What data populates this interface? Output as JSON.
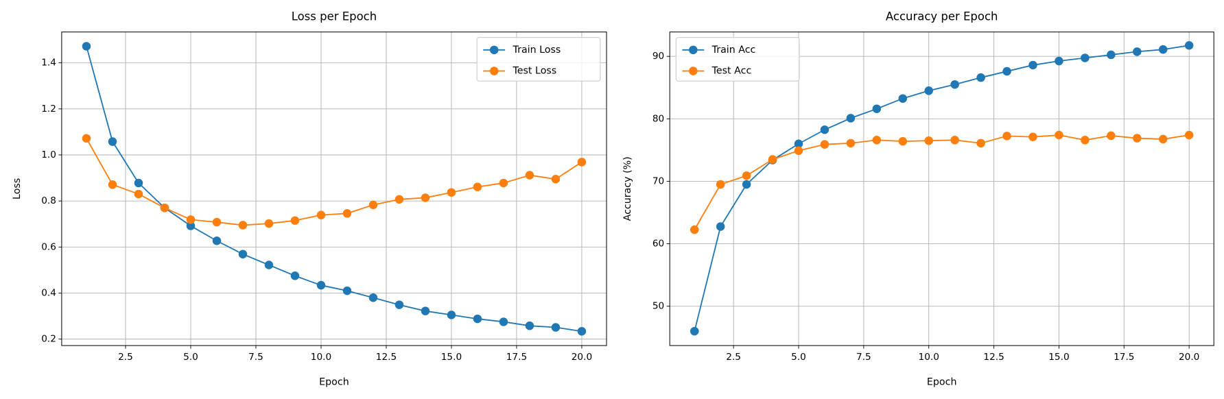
{
  "chart_data": [
    {
      "type": "line",
      "title": "Loss per Epoch",
      "xlabel": "Epoch",
      "ylabel": "Loss",
      "x": [
        1,
        2,
        3,
        4,
        5,
        6,
        7,
        8,
        9,
        10,
        11,
        12,
        13,
        14,
        15,
        16,
        17,
        18,
        19,
        20
      ],
      "series": [
        {
          "name": "Train Loss",
          "color": "#1f77b4",
          "values": [
            1.472,
            1.058,
            0.878,
            0.77,
            0.692,
            0.627,
            0.569,
            0.522,
            0.475,
            0.434,
            0.41,
            0.38,
            0.349,
            0.322,
            0.305,
            0.288,
            0.275,
            0.258,
            0.251,
            0.234
          ]
        },
        {
          "name": "Test Loss",
          "color": "#ff7f0e",
          "values": [
            1.072,
            0.871,
            0.83,
            0.77,
            0.719,
            0.708,
            0.695,
            0.702,
            0.715,
            0.739,
            0.746,
            0.783,
            0.807,
            0.814,
            0.837,
            0.861,
            0.878,
            0.912,
            0.895,
            0.969
          ]
        }
      ],
      "xlim": [
        0.05,
        20.95
      ],
      "ylim": [
        0.172,
        1.534
      ],
      "xticks": [
        2.5,
        {
          "value": 5,
          "label": "5.0"
        },
        7.5,
        {
          "value": 10,
          "label": "10.0"
        },
        12.5,
        {
          "value": 15,
          "label": "15.0"
        },
        17.5,
        {
          "value": 20,
          "label": "20.0"
        }
      ],
      "yticks": [
        0.2,
        0.4,
        0.6,
        0.8,
        {
          "value": 1,
          "label": "1.0"
        },
        1.2,
        1.4
      ],
      "grid": true,
      "legend": "upper right"
    },
    {
      "type": "line",
      "title": "Accuracy per Epoch",
      "xlabel": "Epoch",
      "ylabel": "Accuracy (%)",
      "x": [
        1,
        2,
        3,
        4,
        5,
        6,
        7,
        8,
        9,
        10,
        11,
        12,
        13,
        14,
        15,
        16,
        17,
        18,
        19,
        20
      ],
      "series": [
        {
          "name": "Train Acc",
          "color": "#1f77b4",
          "values": [
            46.0,
            62.75,
            69.5,
            73.4,
            76.0,
            78.25,
            80.1,
            81.6,
            83.25,
            84.5,
            85.5,
            86.6,
            87.6,
            88.6,
            89.25,
            89.75,
            90.25,
            90.75,
            91.1,
            91.75
          ]
        },
        {
          "name": "Test Acc",
          "color": "#ff7f0e",
          "values": [
            62.25,
            69.5,
            70.9,
            73.5,
            74.9,
            75.9,
            76.1,
            76.6,
            76.4,
            76.5,
            76.6,
            76.1,
            77.25,
            77.1,
            77.4,
            76.6,
            77.3,
            76.9,
            76.75,
            77.4
          ]
        }
      ],
      "xlim": [
        0.05,
        20.95
      ],
      "ylim": [
        43.7,
        93.9
      ],
      "xticks": [
        2.5,
        {
          "value": 5,
          "label": "5.0"
        },
        7.5,
        {
          "value": 10,
          "label": "10.0"
        },
        12.5,
        {
          "value": 15,
          "label": "15.0"
        },
        17.5,
        {
          "value": 20,
          "label": "20.0"
        }
      ],
      "yticks": [
        50,
        60,
        70,
        80,
        90
      ],
      "grid": true,
      "legend": "upper left"
    }
  ]
}
